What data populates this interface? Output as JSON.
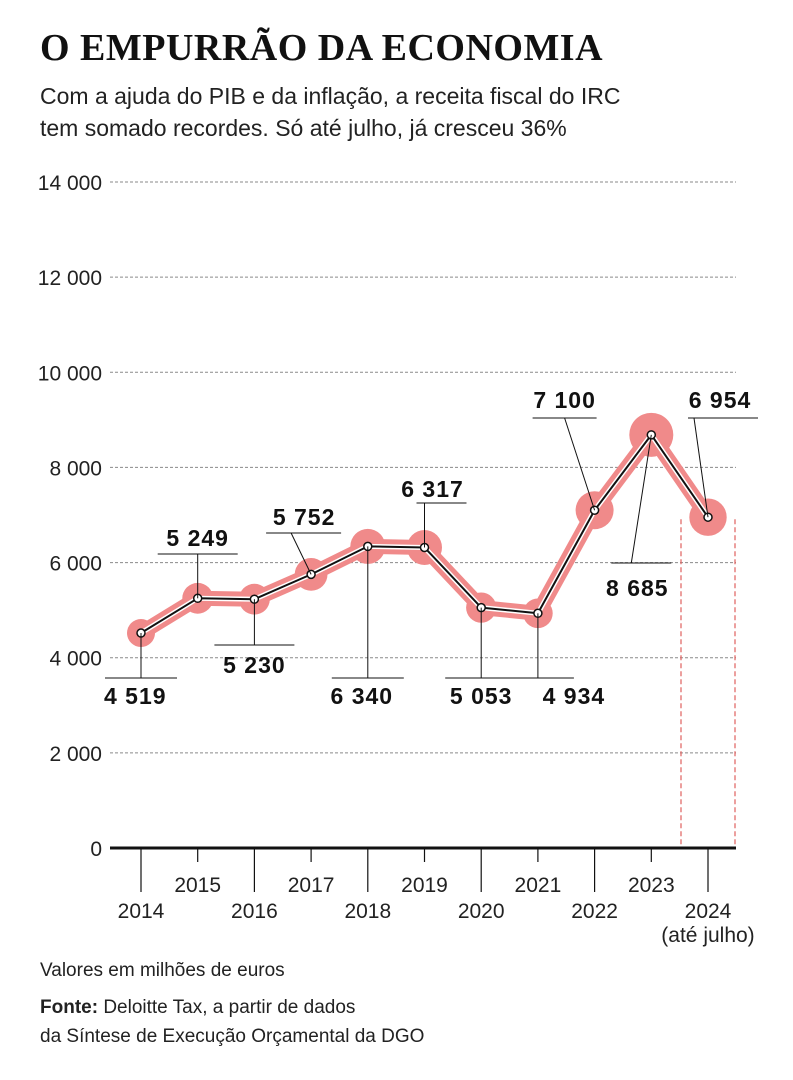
{
  "title": "O EMPURRÃO DA ECONOMIA",
  "subtitle_line1": "Com a ajuda do PIB e da inflação, a receita fiscal do IRC",
  "subtitle_line2": "tem somado recordes. Só até julho, já cresceu 36%",
  "units_note": "Valores em milhões de euros",
  "source_label": "Fonte:",
  "source_line1": "Deloitte Tax, a partir de dados",
  "source_line2": "da Síntese de Execução Orçamental da DGO",
  "colors": {
    "line": "#111111",
    "highlight": "#f08a8a",
    "grid": "#8a8a8a",
    "partial_marker": "#e0605e"
  },
  "chart_data": {
    "type": "line",
    "categories": [
      "2014",
      "2015",
      "2016",
      "2017",
      "2018",
      "2019",
      "2020",
      "2021",
      "2022",
      "2023",
      "2024"
    ],
    "category_note": "(até julho)",
    "values": [
      4519,
      5249,
      5230,
      5752,
      6340,
      6317,
      5053,
      4934,
      7100,
      8685,
      6954
    ],
    "value_labels": [
      "4 519",
      "5 249",
      "5 230",
      "5 752",
      "6 340",
      "6 317",
      "5 053",
      "4 934",
      "7 100",
      "8 685",
      "6 954"
    ],
    "y_ticks": [
      0,
      2000,
      4000,
      6000,
      8000,
      10000,
      12000,
      14000
    ],
    "y_tick_labels": [
      "0",
      "2 000",
      "4 000",
      "6 000",
      "8 000",
      "10 000",
      "12 000",
      "14 000"
    ],
    "ylim": [
      0,
      14000
    ],
    "grid": true,
    "partial_period": "2024"
  }
}
